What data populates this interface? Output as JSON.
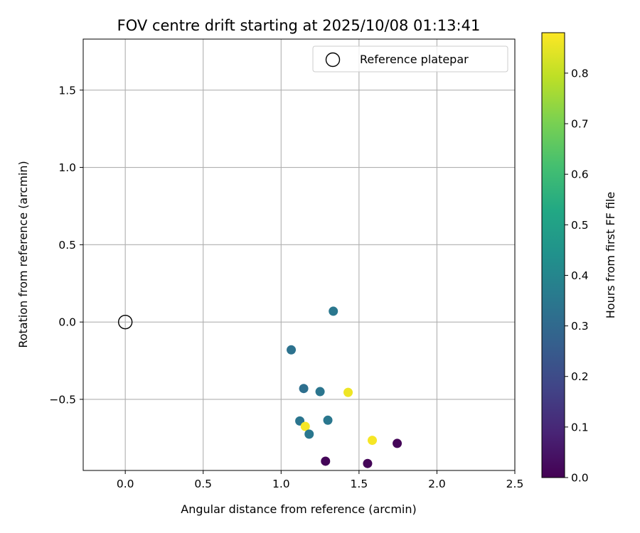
{
  "chart_data": {
    "type": "scatter",
    "title": "FOV centre drift starting at 2025/10/08 01:13:41",
    "xlabel": "Angular distance from reference (arcmin)",
    "ylabel": "Rotation from reference (arcmin)",
    "xlim": [
      -0.27,
      2.5
    ],
    "ylim": [
      -0.96,
      1.83
    ],
    "xticks": [
      0.0,
      0.5,
      1.0,
      1.5,
      2.0,
      2.5
    ],
    "xtick_labels": [
      "0.0",
      "0.5",
      "1.0",
      "1.5",
      "2.0",
      "2.5"
    ],
    "yticks": [
      -0.5,
      0.0,
      0.5,
      1.0,
      1.5
    ],
    "ytick_labels": [
      "−0.5",
      "0.0",
      "0.5",
      "1.0",
      "1.5"
    ],
    "grid": true,
    "legend": {
      "position": "top-right",
      "entries": [
        {
          "label": "Reference platepar",
          "marker": "open-circle"
        }
      ]
    },
    "reference_point": {
      "x": 0.0,
      "y": 0.0
    },
    "points": [
      {
        "x": 1.335,
        "y": 0.07,
        "hours": 0.35
      },
      {
        "x": 1.065,
        "y": -0.18,
        "hours": 0.33
      },
      {
        "x": 1.145,
        "y": -0.43,
        "hours": 0.32
      },
      {
        "x": 1.25,
        "y": -0.45,
        "hours": 0.34
      },
      {
        "x": 1.43,
        "y": -0.455,
        "hours": 0.86
      },
      {
        "x": 1.12,
        "y": -0.64,
        "hours": 0.34
      },
      {
        "x": 1.3,
        "y": -0.635,
        "hours": 0.35
      },
      {
        "x": 1.155,
        "y": -0.675,
        "hours": 0.87
      },
      {
        "x": 1.18,
        "y": -0.725,
        "hours": 0.35
      },
      {
        "x": 1.585,
        "y": -0.765,
        "hours": 0.87
      },
      {
        "x": 1.745,
        "y": -0.785,
        "hours": 0.01
      },
      {
        "x": 1.285,
        "y": -0.9,
        "hours": 0.01
      },
      {
        "x": 1.555,
        "y": -0.915,
        "hours": 0.01
      }
    ],
    "colorbar": {
      "label": "Hours from first FF file",
      "range": [
        0.0,
        0.88
      ],
      "ticks": [
        0.0,
        0.1,
        0.2,
        0.3,
        0.4,
        0.5,
        0.6,
        0.7,
        0.8
      ],
      "tick_labels": [
        "0.0",
        "0.1",
        "0.2",
        "0.3",
        "0.4",
        "0.5",
        "0.6",
        "0.7",
        "0.8"
      ],
      "colormap": "viridis"
    }
  }
}
